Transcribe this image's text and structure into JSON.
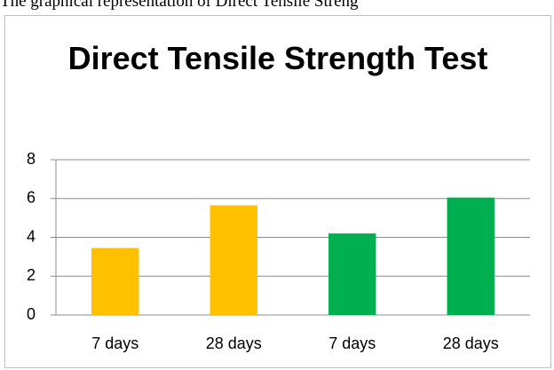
{
  "caption": "The graphical representation of Direct Tensile Streng",
  "chart_data": {
    "type": "bar",
    "title": "Direct Tensile Strength Test",
    "categories": [
      "7 days",
      "28 days",
      "7 days",
      "28 days"
    ],
    "values": [
      3.45,
      5.65,
      4.2,
      6.05
    ],
    "colors": [
      "#FFC000",
      "#FFC000",
      "#00B050",
      "#00B050"
    ],
    "ylim": [
      0,
      8
    ],
    "yticks": [
      0,
      2,
      4,
      6,
      8
    ],
    "grid": true
  }
}
